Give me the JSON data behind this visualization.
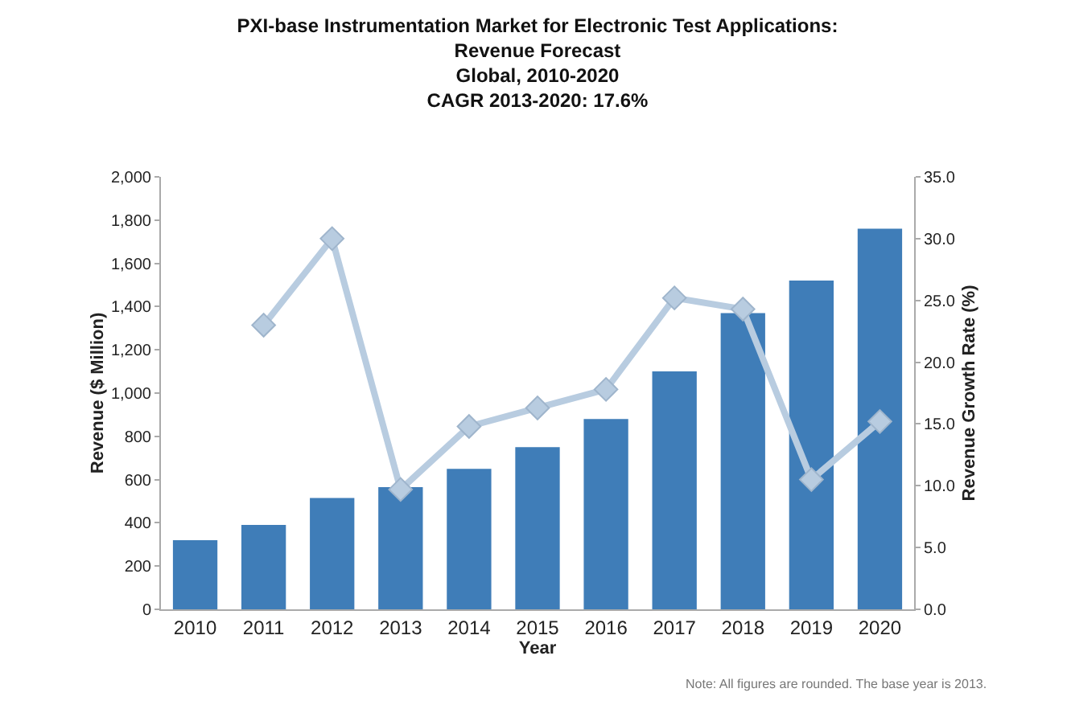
{
  "chart_data": {
    "type": "bar",
    "title": "PXI-base Instrumentation Market for Electronic Test Applications:\nRevenue Forecast\nGlobal, 2010-2020\nCAGR 2013-2020: 17.6%",
    "xlabel": "Year",
    "ylabel": "Revenue ($ Million)",
    "y2label": "Revenue Growth Rate (%)",
    "categories": [
      "2010",
      "2011",
      "2012",
      "2013",
      "2014",
      "2015",
      "2016",
      "2017",
      "2018",
      "2019",
      "2020"
    ],
    "series": [
      {
        "color": "#3f7db8",
        "values": [
          320,
          390,
          515,
          565,
          650,
          750,
          880,
          1100,
          1370,
          1520,
          1760
        ]
      },
      {
        "type": "line",
        "axis": "y2",
        "color": "#b8cce0",
        "marker": "diamond",
        "values": [
          null,
          23.0,
          30.0,
          9.7,
          14.8,
          16.3,
          17.8,
          25.2,
          24.3,
          10.5,
          15.2
        ]
      }
    ],
    "ylim": [
      0,
      2000
    ],
    "yticks": [
      0,
      200,
      400,
      600,
      800,
      {
        "value": 1000,
        "label": "1,000"
      },
      {
        "value": 1200,
        "label": "1,200"
      },
      {
        "value": 1400,
        "label": "1,400"
      },
      {
        "value": 1600,
        "label": "1,600"
      },
      {
        "value": 1800,
        "label": "1,800"
      },
      {
        "value": 2000,
        "label": "2,000"
      }
    ],
    "y2lim": [
      0,
      35
    ],
    "y2ticks": [
      {
        "value": 0,
        "label": "0.0"
      },
      {
        "value": 5,
        "label": "5.0"
      },
      {
        "value": 10,
        "label": "10.0"
      },
      {
        "value": 15,
        "label": "15.0"
      },
      {
        "value": 20,
        "label": "20.0"
      },
      {
        "value": 25,
        "label": "25.0"
      },
      {
        "value": 30,
        "label": "30.0"
      },
      {
        "value": 35,
        "label": "35.0"
      }
    ],
    "grid": false,
    "legend": false,
    "annotations": [
      "Note: All figures are rounded. The base year is 2013."
    ]
  }
}
